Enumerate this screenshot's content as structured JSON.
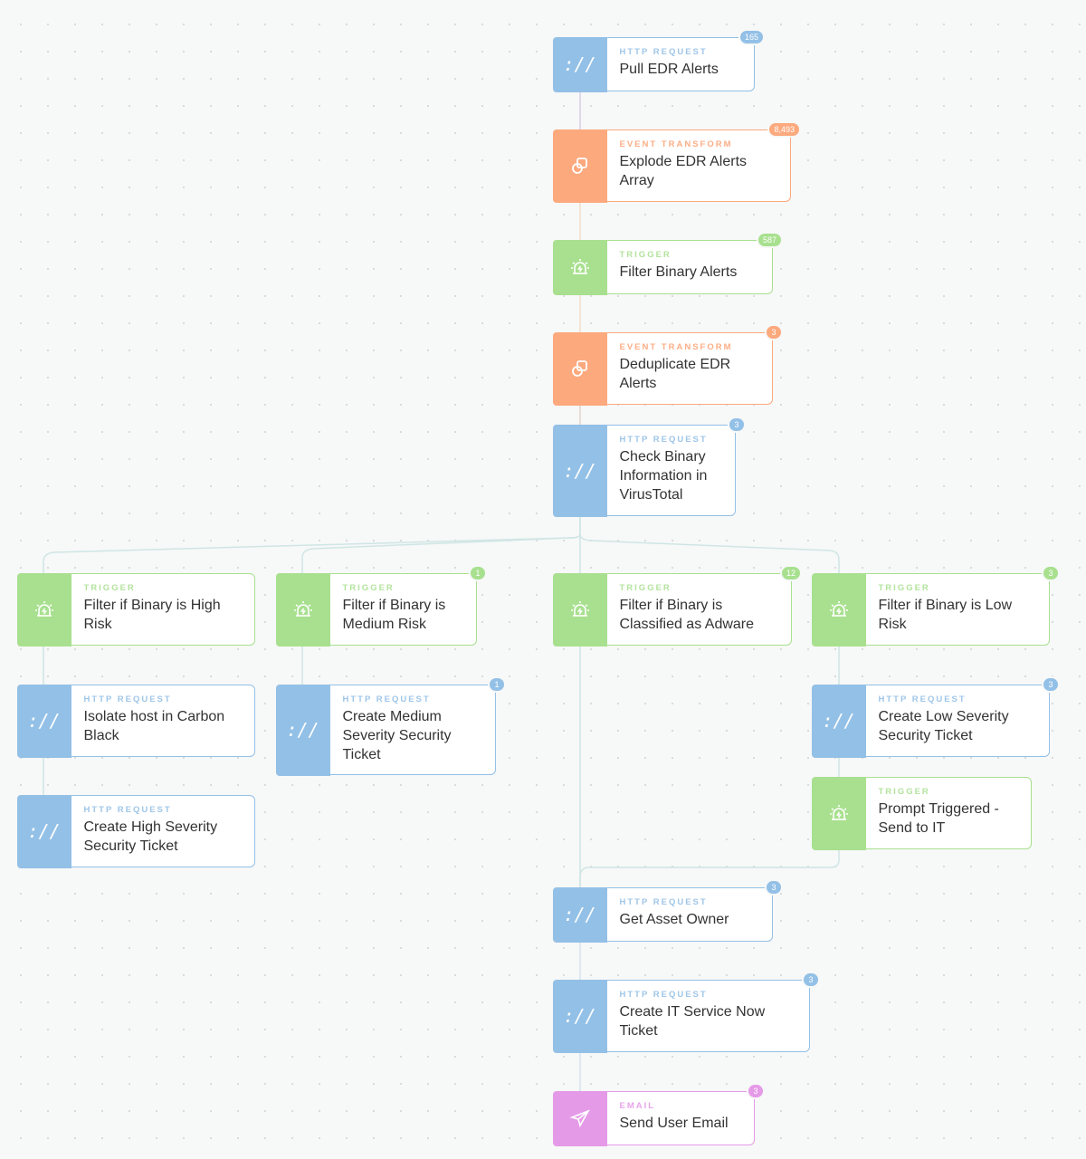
{
  "colors": {
    "http": {
      "fill": "#93c0e6",
      "label": "#9fc6e8"
    },
    "transform": {
      "fill": "#fca97e",
      "label": "#fcae86"
    },
    "trigger": {
      "fill": "#a8e08f",
      "label": "#b3e39d"
    },
    "email": {
      "fill": "#e59ae8",
      "label": "#e8a3ea"
    }
  },
  "type_labels": {
    "http": "HTTP REQUEST",
    "transform": "EVENT TRANSFORM",
    "trigger": "TRIGGER",
    "email": "EMAIL"
  },
  "icons": {
    "http": "url-scheme-icon",
    "transform": "transform-squares-icon",
    "trigger": "alarm-siren-icon",
    "email": "paper-plane-icon"
  },
  "http_icon_text": "://",
  "nodes": [
    {
      "kind": "http",
      "type": "HTTP REQUEST",
      "title": "Pull EDR Alerts",
      "badge": "165"
    },
    {
      "kind": "transform",
      "type": "EVENT TRANSFORM",
      "title": "Explode EDR Alerts Array",
      "badge": "8,493"
    },
    {
      "kind": "trigger",
      "type": "TRIGGER",
      "title": "Filter Binary Alerts",
      "badge": "587"
    },
    {
      "kind": "transform",
      "type": "EVENT TRANSFORM",
      "title": "Deduplicate EDR Alerts",
      "badge": "3"
    },
    {
      "kind": "http",
      "type": "HTTP REQUEST",
      "title": "Check Binary Information in VirusTotal",
      "badge": "3"
    },
    {
      "kind": "trigger",
      "type": "TRIGGER",
      "title": "Filter if Binary is High Risk",
      "badge": null
    },
    {
      "kind": "trigger",
      "type": "TRIGGER",
      "title": "Filter if Binary is Medium Risk",
      "badge": "1"
    },
    {
      "kind": "trigger",
      "type": "TRIGGER",
      "title": "Filter if Binary is Classified as Adware",
      "badge": "12"
    },
    {
      "kind": "trigger",
      "type": "TRIGGER",
      "title": "Filter if Binary is Low Risk",
      "badge": "3"
    },
    {
      "kind": "http",
      "type": "HTTP REQUEST",
      "title": "Isolate host in Carbon Black",
      "badge": null
    },
    {
      "kind": "http",
      "type": "HTTP REQUEST",
      "title": "Create Medium Severity Security Ticket",
      "badge": "1"
    },
    {
      "kind": "http",
      "type": "HTTP REQUEST",
      "title": "Create Low Severity Security Ticket",
      "badge": "3"
    },
    {
      "kind": "http",
      "type": "HTTP REQUEST",
      "title": "Create High Severity Security Ticket",
      "badge": null
    },
    {
      "kind": "trigger",
      "type": "TRIGGER",
      "title": "Prompt Triggered - Send to IT",
      "badge": null
    },
    {
      "kind": "http",
      "type": "HTTP REQUEST",
      "title": "Get Asset Owner",
      "badge": "3"
    },
    {
      "kind": "http",
      "type": "HTTP REQUEST",
      "title": "Create IT Service Now Ticket",
      "badge": "3"
    },
    {
      "kind": "email",
      "type": "EMAIL",
      "title": "Send User Email",
      "badge": "3"
    }
  ]
}
